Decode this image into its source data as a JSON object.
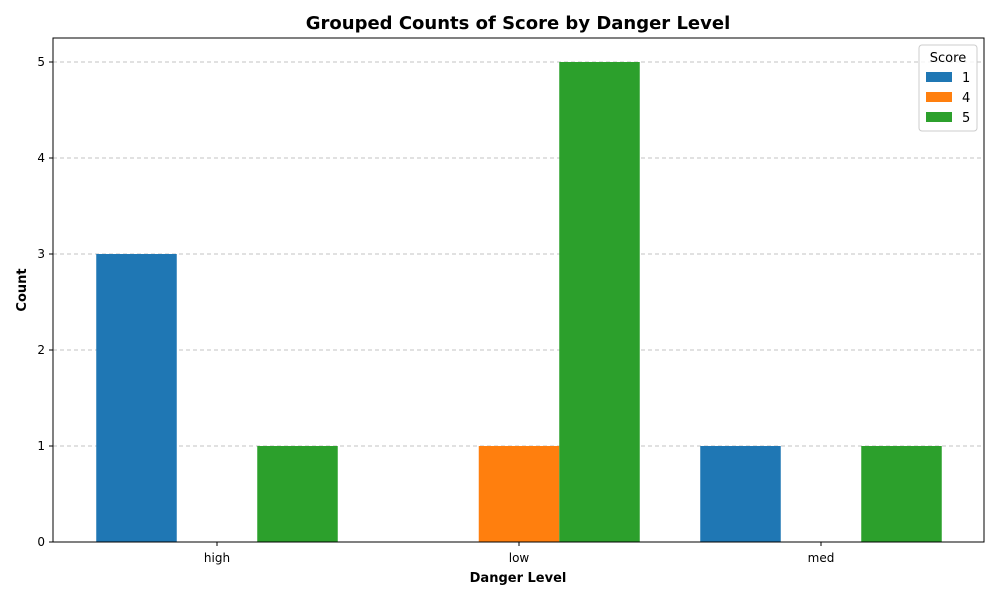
{
  "chart_data": {
    "type": "bar",
    "title": "Grouped Counts of Score by Danger Level",
    "xlabel": "Danger Level",
    "ylabel": "Count",
    "categories": [
      "high",
      "low",
      "med"
    ],
    "series": [
      {
        "name": "1",
        "color": "#1f77b4",
        "values": [
          3,
          0,
          1
        ]
      },
      {
        "name": "4",
        "color": "#ff7f0e",
        "values": [
          0,
          1,
          0
        ]
      },
      {
        "name": "5",
        "color": "#2ca02c",
        "values": [
          1,
          5,
          1
        ]
      }
    ],
    "ylim": [
      0,
      5.25
    ],
    "yticks": [
      0,
      1,
      2,
      3,
      4,
      5
    ],
    "grid": "y-dashed",
    "legend": {
      "title": "Score",
      "placement": "top-right"
    }
  }
}
